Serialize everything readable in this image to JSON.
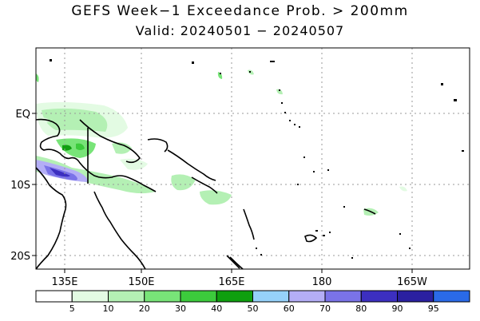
{
  "title": "GEFS Week−1 Exceedance Prob. > 200mm",
  "subtitle": "Valid: 20240501 − 20240507",
  "axes": {
    "lat_labels": [
      "EQ",
      "10S",
      "20S"
    ],
    "lon_labels": [
      "135E",
      "150E",
      "165E",
      "180",
      "165W"
    ]
  },
  "legend": {
    "labels": [
      "5",
      "10",
      "20",
      "30",
      "40",
      "50",
      "60",
      "70",
      "80",
      "90",
      "95"
    ],
    "colors": [
      "#ffffff",
      "#e3fbe3",
      "#b4f0b4",
      "#78e478",
      "#3ccb3c",
      "#0f9f0f",
      "#96d2fa",
      "#b4aef6",
      "#7a73e8",
      "#3c2fc0",
      "#2a20a0",
      "#2a6ae8"
    ]
  }
}
